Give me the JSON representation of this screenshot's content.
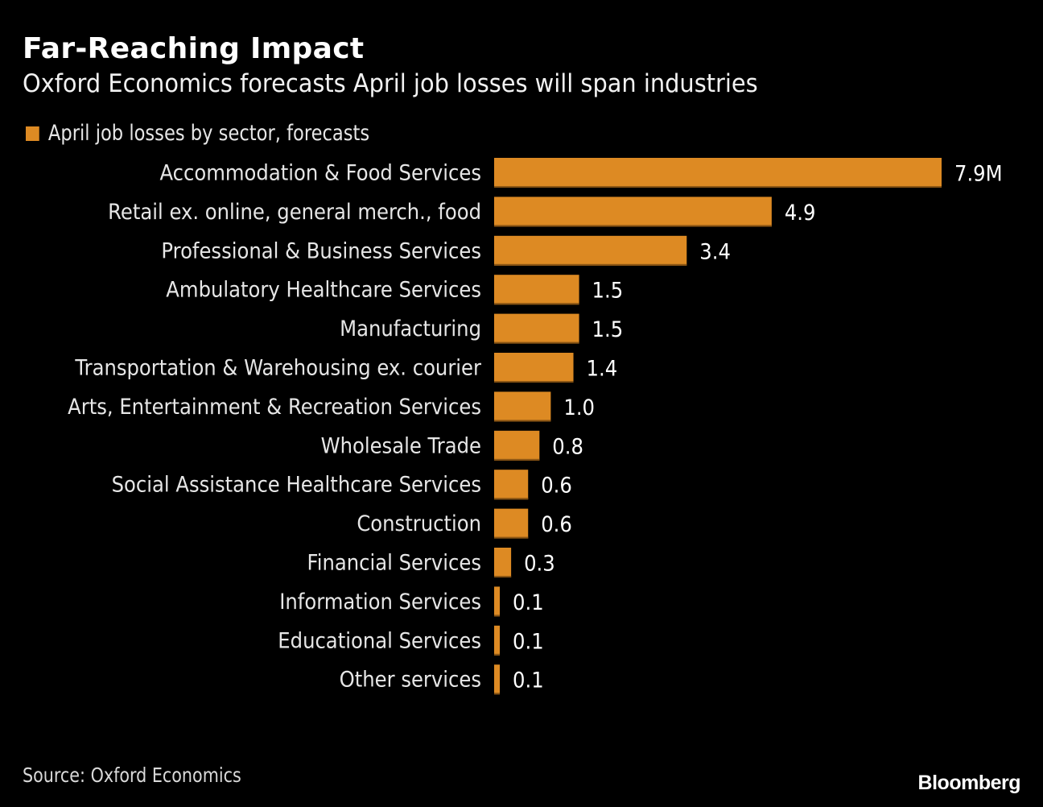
{
  "header": {
    "title": "Far-Reaching Impact",
    "subtitle": "Oxford Economics forecasts April job losses will span industries"
  },
  "footer": {
    "source": "Source: Oxford Economics",
    "brand": "Bloomberg"
  },
  "colors": {
    "background": "#000000",
    "bar": "#dd8a23",
    "bar_edge": "#8a5514"
  },
  "chart_data": {
    "type": "bar",
    "orientation": "horizontal",
    "title": "Far-Reaching Impact",
    "subtitle": "Oxford Economics forecasts April job losses will span industries",
    "legend": [
      {
        "label": "April job losses by sector, forecasts",
        "color": "#dd8a23"
      }
    ],
    "legend_position": "top-left",
    "unit": "M",
    "xlim": [
      0,
      7.9
    ],
    "grid": false,
    "categories": [
      "Accommodation & Food Services",
      "Retail ex. online, general merch., food",
      "Professional & Business Services",
      "Ambulatory Healthcare Services",
      "Manufacturing",
      "Transportation & Warehousing ex. courier",
      "Arts, Entertainment & Recreation Services",
      "Wholesale Trade",
      "Social Assistance Healthcare Services",
      "Construction",
      "Financial Services",
      "Information Services",
      "Educational Services",
      "Other services"
    ],
    "values": [
      7.9,
      4.9,
      3.4,
      1.5,
      1.5,
      1.4,
      1.0,
      0.8,
      0.6,
      0.6,
      0.3,
      0.1,
      0.1,
      0.1
    ],
    "value_labels": [
      "7.9M",
      "4.9",
      "3.4",
      "1.5",
      "1.5",
      "1.4",
      "1.0",
      "0.8",
      "0.6",
      "0.6",
      "0.3",
      "0.1",
      "0.1",
      "0.1"
    ],
    "source": "Source: Oxford Economics"
  }
}
